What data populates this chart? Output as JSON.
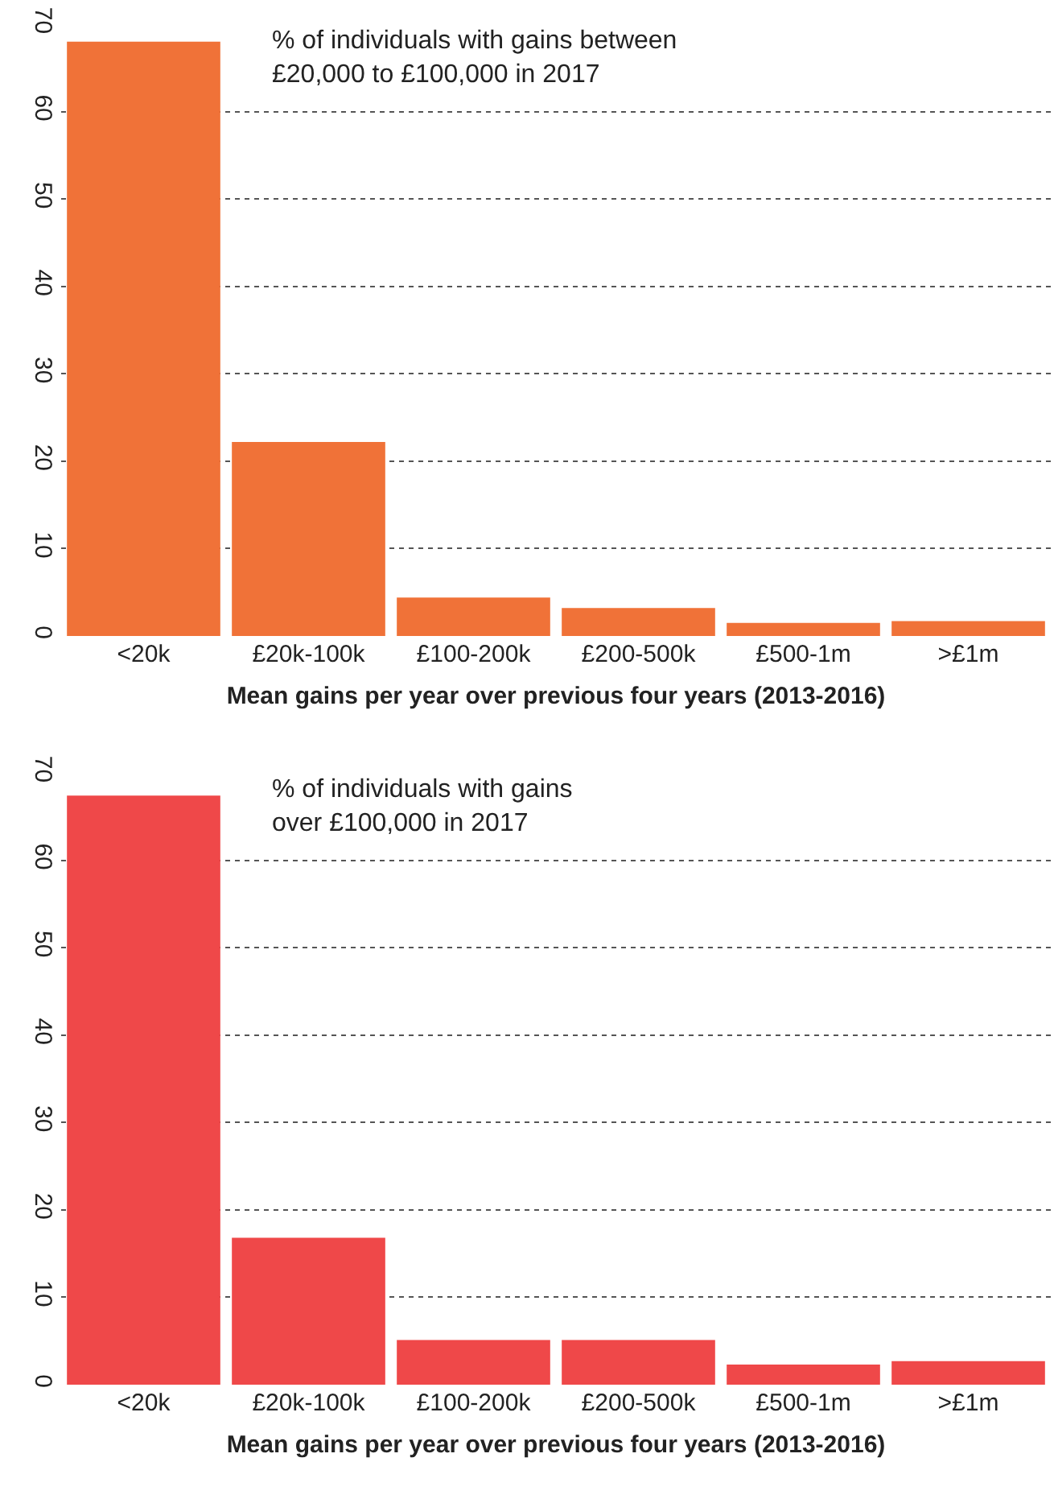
{
  "chart_data": [
    {
      "type": "bar",
      "categories": [
        "<20k",
        "£20k-100k",
        "£100-200k",
        "£200-500k",
        "£500-1m",
        ">£1m"
      ],
      "values": [
        68,
        22.2,
        4.4,
        3.2,
        1.5,
        1.7
      ],
      "color": "#f07238",
      "xlabel": "Mean gains per year over previous four years (2013-2016)",
      "ylim": [
        0,
        70
      ],
      "yticks": [
        0,
        10,
        20,
        30,
        40,
        50,
        60,
        70
      ],
      "grid": "y",
      "legend": false,
      "annotations": [
        "% of individuals with gains between",
        "£20,000 to £100,000 in 2017"
      ]
    },
    {
      "type": "bar",
      "categories": [
        "<20k",
        "£20k-100k",
        "£100-200k",
        "£200-500k",
        "£500-1m",
        ">£1m"
      ],
      "values": [
        67.4,
        16.8,
        5.1,
        5.1,
        2.3,
        2.7
      ],
      "color": "#ef4849",
      "xlabel": "Mean gains per year over previous four years (2013-2016)",
      "ylim": [
        0,
        70
      ],
      "yticks": [
        0,
        10,
        20,
        30,
        40,
        50,
        60,
        70
      ],
      "grid": "y",
      "legend": false,
      "annotations": [
        "% of individuals with gains",
        "over £100,000 in 2017"
      ]
    }
  ]
}
